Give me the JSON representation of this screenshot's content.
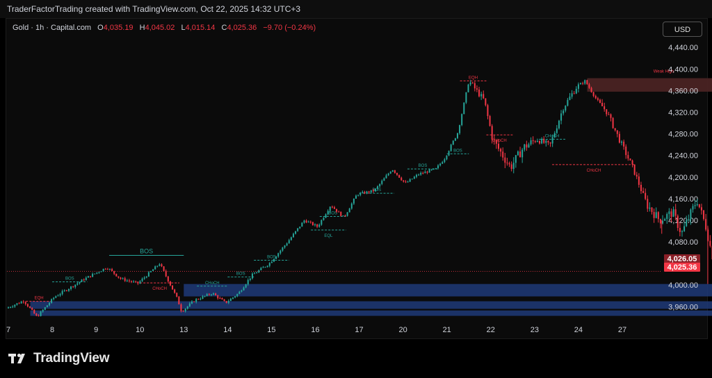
{
  "header": {
    "credit": "TraderFactorTrading created with TradingView.com, Oct 22, 2025 14:32 UTC+3"
  },
  "legend": {
    "symbol": "Gold · 1h · Capital.com",
    "open_label": "O",
    "open": "4,035.19",
    "high_label": "H",
    "high": "4,045.02",
    "low_label": "L",
    "low": "4,015.14",
    "close_label": "C",
    "close": "4,025.36",
    "change": "−9.70 (−0.24%)"
  },
  "currency_button": "USD",
  "brand": "TradingView",
  "colors": {
    "up": "#26a69a",
    "down": "#f23645",
    "supply": "#4a2323",
    "demand": "#1f3a78",
    "background": "#0b0b0b"
  },
  "chart_data": {
    "type": "candlestick",
    "symbol": "Gold",
    "timeframe": "1h",
    "x_ticks": [
      "7",
      "8",
      "9",
      "10",
      "13",
      "14",
      "15",
      "16",
      "17",
      "20",
      "21",
      "22",
      "23",
      "24",
      "27"
    ],
    "y_ticks": [
      "4,440.00",
      "4,400.00",
      "4,360.00",
      "4,320.00",
      "4,280.00",
      "4,240.00",
      "4,200.00",
      "4,160.00",
      "4,120.00",
      "4,080.00",
      "4,040.00",
      "4,000.00",
      "3,960.00"
    ],
    "ylim": [
      3936,
      4466
    ],
    "price_labels": [
      {
        "text": "4,026.05",
        "price": 4026.05,
        "color": "#f23645"
      },
      {
        "text": "4,025.36",
        "price": 4025.36,
        "color": "#f23645"
      }
    ],
    "price_line": 4025.36,
    "path": [
      [
        0,
        3957
      ],
      [
        0.4,
        3971
      ],
      [
        0.7,
        3941
      ],
      [
        1.1,
        3978
      ],
      [
        1.8,
        4012
      ],
      [
        2.3,
        4033
      ],
      [
        2.6,
        4012
      ],
      [
        3.0,
        4003
      ],
      [
        3.5,
        4040
      ],
      [
        3.9,
        3975
      ],
      [
        4.0,
        3951
      ],
      [
        4.3,
        3972
      ],
      [
        4.7,
        3985
      ],
      [
        5.0,
        3967
      ],
      [
        5.3,
        3985
      ],
      [
        5.6,
        4018
      ],
      [
        6.0,
        4040
      ],
      [
        6.4,
        4078
      ],
      [
        6.8,
        4120
      ],
      [
        7.1,
        4108
      ],
      [
        7.4,
        4148
      ],
      [
        7.7,
        4125
      ],
      [
        8.0,
        4168
      ],
      [
        8.4,
        4175
      ],
      [
        8.8,
        4215
      ],
      [
        9.1,
        4188
      ],
      [
        9.4,
        4205
      ],
      [
        9.8,
        4215
      ],
      [
        10.0,
        4235
      ],
      [
        10.3,
        4283
      ],
      [
        10.55,
        4378
      ],
      [
        10.9,
        4342
      ],
      [
        11.1,
        4268
      ],
      [
        11.5,
        4218
      ],
      [
        11.8,
        4255
      ],
      [
        12.1,
        4270
      ],
      [
        12.4,
        4258
      ],
      [
        12.7,
        4328
      ],
      [
        13.0,
        4366
      ],
      [
        13.2,
        4378
      ],
      [
        13.45,
        4345
      ],
      [
        13.7,
        4320
      ],
      [
        14.0,
        4266
      ],
      [
        14.3,
        4215
      ],
      [
        14.6,
        4150
      ],
      [
        14.9,
        4120
      ],
      [
        15.2,
        4135
      ],
      [
        15.4,
        4095
      ],
      [
        15.75,
        4158
      ],
      [
        15.95,
        4110
      ],
      [
        16.1,
        4055
      ],
      [
        16.25,
        4025
      ]
    ],
    "volatility": [
      [
        0,
        0
      ],
      [
        1,
        0
      ],
      [
        3.9,
        0
      ],
      [
        4.0,
        0
      ],
      [
        10.5,
        1
      ],
      [
        11,
        2
      ],
      [
        12,
        1
      ],
      [
        13,
        0
      ],
      [
        13.5,
        1
      ],
      [
        14.5,
        2
      ],
      [
        15.2,
        2
      ],
      [
        15.5,
        2
      ],
      [
        16.25,
        0
      ]
    ],
    "zones": [
      {
        "kind": "supply",
        "label": "Weak High",
        "x_start": 13.2,
        "x_end": 17.0,
        "low": 4358,
        "high": 4383
      },
      {
        "kind": "demand",
        "x_start": 4.0,
        "x_end": 17.0,
        "low": 3979,
        "high": 4002
      },
      {
        "kind": "demand",
        "x_start": 0.5,
        "x_end": 17.0,
        "low": 3956,
        "high": 3970
      },
      {
        "kind": "demand",
        "x_start": 0.5,
        "x_end": 17.0,
        "low": 3943,
        "high": 3953
      }
    ],
    "structure_lines": [
      {
        "label": "EQH",
        "x_start": 0.4,
        "x_end": 1.0,
        "price": 3970,
        "color": "#f23645",
        "dashed": true
      },
      {
        "label": "BOS",
        "x_start": 1.0,
        "x_end": 1.8,
        "price": 4006,
        "color": "#26a69a",
        "dashed": true
      },
      {
        "label": "BOS",
        "x_start": 2.3,
        "x_end": 4.0,
        "price": 4055,
        "color": "#26a69a",
        "dashed": false
      },
      {
        "label": "CHoCH",
        "x_start": 3.0,
        "x_end": 3.9,
        "price": 4004,
        "color": "#f23645",
        "dashed": true
      },
      {
        "label": "CHoCH",
        "x_start": 4.3,
        "x_end": 5.0,
        "price": 3998,
        "color": "#26a69a",
        "dashed": true
      },
      {
        "label": "BOS",
        "x_start": 5.0,
        "x_end": 5.6,
        "price": 4015,
        "color": "#26a69a",
        "dashed": true
      },
      {
        "label": "BOS",
        "x_start": 5.6,
        "x_end": 6.4,
        "price": 4046,
        "color": "#26a69a",
        "dashed": true
      },
      {
        "label": "EQL",
        "x_start": 6.9,
        "x_end": 7.7,
        "price": 4102,
        "color": "#26a69a",
        "dashed": true
      },
      {
        "label": "BOS",
        "x_start": 7.1,
        "x_end": 7.7,
        "price": 4127,
        "color": "#26a69a",
        "dashed": true
      },
      {
        "label": "BOS",
        "x_start": 8.0,
        "x_end": 8.8,
        "price": 4170,
        "color": "#26a69a",
        "dashed": true
      },
      {
        "label": "BOS",
        "x_start": 9.1,
        "x_end": 9.8,
        "price": 4215,
        "color": "#26a69a",
        "dashed": true
      },
      {
        "label": "BOS",
        "x_start": 10.0,
        "x_end": 10.5,
        "price": 4243,
        "color": "#26a69a",
        "dashed": true
      },
      {
        "label": "EQH",
        "x_start": 10.3,
        "x_end": 10.9,
        "price": 4378,
        "color": "#f23645",
        "dashed": true
      },
      {
        "label": "CHoCH",
        "x_start": 10.9,
        "x_end": 11.5,
        "price": 4278,
        "color": "#f23645",
        "dashed": true
      },
      {
        "label": "CHoCH",
        "x_start": 12.1,
        "x_end": 12.7,
        "price": 4270,
        "color": "#26a69a",
        "dashed": true
      },
      {
        "label": "CHoCH",
        "x_start": 12.4,
        "x_end": 14.3,
        "price": 4223,
        "color": "#f23645",
        "dashed": true
      }
    ],
    "event_markers": [
      {
        "kind": "lightning",
        "x": 16.3
      },
      {
        "kind": "us-flag",
        "x": 17.5
      },
      {
        "kind": "us-flag",
        "x": 18.5
      },
      {
        "kind": "us-flag",
        "x": 19.5
      }
    ]
  }
}
